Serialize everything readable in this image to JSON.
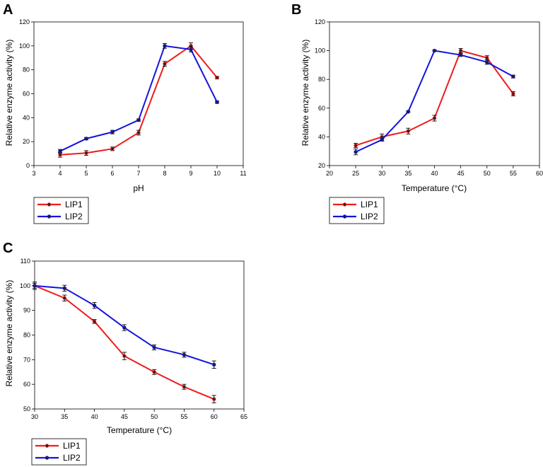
{
  "series_colors": {
    "LIP1": "#ee1c1c",
    "LIP2": "#1414dc"
  },
  "chart_data": [
    {
      "panel": "A",
      "type": "line",
      "xlabel": "pH",
      "ylabel": "Relative enzyme activity (%)",
      "xlim": [
        3,
        11
      ],
      "ylim": [
        0,
        120
      ],
      "xticks": [
        3,
        4,
        5,
        6,
        7,
        8,
        9,
        10,
        11
      ],
      "yticks": [
        0,
        20,
        40,
        60,
        80,
        100,
        120
      ],
      "legend": "bottom-left-outside",
      "series": [
        {
          "name": "LIP1",
          "x": [
            4,
            5,
            6,
            7,
            8,
            9,
            10
          ],
          "y": [
            9,
            10.5,
            14,
            27.5,
            85,
            100,
            73.5
          ],
          "err": [
            2,
            2,
            1.5,
            2,
            2,
            2.5,
            1
          ]
        },
        {
          "name": "LIP2",
          "x": [
            4,
            5,
            6,
            7,
            8,
            9,
            10
          ],
          "y": [
            12,
            22.5,
            28,
            38,
            100,
            97,
            53
          ],
          "err": [
            1.5,
            1,
            1.5,
            1,
            2,
            2,
            1
          ]
        }
      ]
    },
    {
      "panel": "B",
      "type": "line",
      "xlabel": "Temperature (°C)",
      "ylabel": "Relative enzyme activity (%)",
      "xlim": [
        20,
        60
      ],
      "ylim": [
        20,
        120
      ],
      "xticks": [
        20,
        25,
        30,
        35,
        40,
        45,
        50,
        55,
        60
      ],
      "yticks": [
        20,
        40,
        60,
        80,
        100,
        120
      ],
      "legend": "bottom-left-outside",
      "series": [
        {
          "name": "LIP1",
          "x": [
            25,
            30,
            35,
            40,
            45,
            50,
            55
          ],
          "y": [
            34,
            40,
            44,
            53,
            100,
            95,
            70
          ],
          "err": [
            1.5,
            2,
            2,
            2,
            1.5,
            1.5,
            1.5
          ]
        },
        {
          "name": "LIP2",
          "x": [
            25,
            30,
            35,
            40,
            45,
            50,
            55
          ],
          "y": [
            29.5,
            38,
            57.5,
            100,
            97,
            92,
            82
          ],
          "err": [
            2,
            1,
            0.5,
            0.5,
            1,
            1.5,
            1
          ]
        }
      ]
    },
    {
      "panel": "C",
      "type": "line",
      "xlabel": "Temperature (°C)",
      "ylabel": "Relative enzyme activity (%)",
      "xlim": [
        30,
        65
      ],
      "ylim": [
        50,
        110
      ],
      "xticks": [
        30,
        35,
        40,
        45,
        50,
        55,
        60,
        65
      ],
      "yticks": [
        50,
        60,
        70,
        80,
        90,
        100,
        110
      ],
      "legend": "bottom-left-outside",
      "series": [
        {
          "name": "LIP1",
          "x": [
            30,
            35,
            40,
            45,
            50,
            55,
            60
          ],
          "y": [
            100,
            95,
            85.5,
            71.5,
            65,
            59,
            54
          ],
          "err": [
            1.5,
            1.2,
            0.8,
            1.5,
            1,
            1,
            1.5
          ]
        },
        {
          "name": "LIP2",
          "x": [
            30,
            35,
            40,
            45,
            50,
            55,
            60
          ],
          "y": [
            100,
            99,
            92,
            83,
            75,
            72,
            68
          ],
          "err": [
            1,
            1.2,
            1.2,
            1.2,
            1,
            1,
            1.5
          ]
        }
      ]
    }
  ]
}
